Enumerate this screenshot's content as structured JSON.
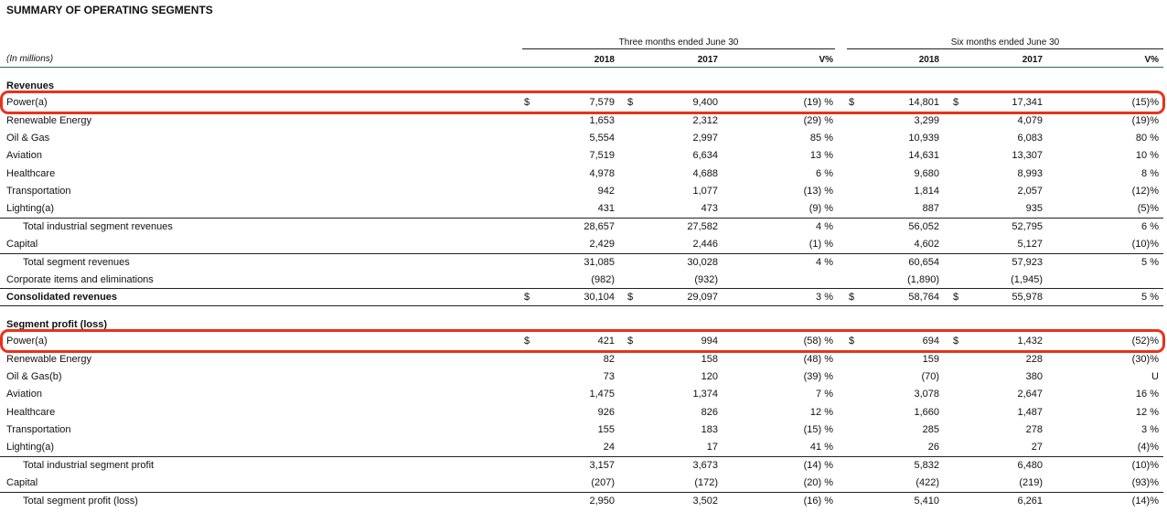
{
  "header": {
    "title": "SUMMARY OF OPERATING SEGMENTS",
    "units": "(In millions)",
    "periods": [
      "Three months ended June 30",
      "Six months ended June 30"
    ],
    "columns": [
      "2018",
      "2017",
      "V%",
      "2018",
      "2017",
      "V%"
    ]
  },
  "sections": [
    {
      "title": "Revenues",
      "rows": [
        {
          "label": "Power(a)",
          "currency": "$",
          "highlight": true,
          "values": [
            "7,579",
            "9,400",
            "(19) %",
            "14,801",
            "17,341",
            "(15)%"
          ]
        },
        {
          "label": "Renewable Energy",
          "values": [
            "1,653",
            "2,312",
            "(29) %",
            "3,299",
            "4,079",
            "(19)%"
          ]
        },
        {
          "label": "Oil & Gas",
          "values": [
            "5,554",
            "2,997",
            "85 %",
            "10,939",
            "6,083",
            "80 %"
          ]
        },
        {
          "label": "Aviation",
          "values": [
            "7,519",
            "6,634",
            "13 %",
            "14,631",
            "13,307",
            "10 %"
          ]
        },
        {
          "label": "Healthcare",
          "values": [
            "4,978",
            "4,688",
            "6 %",
            "9,680",
            "8,993",
            "8 %"
          ]
        },
        {
          "label": "Transportation",
          "values": [
            "942",
            "1,077",
            "(13) %",
            "1,814",
            "2,057",
            "(12)%"
          ]
        },
        {
          "label": "Lighting(a)",
          "values": [
            "431",
            "473",
            "(9) %",
            "887",
            "935",
            "(5)%"
          ]
        },
        {
          "label": "Total industrial segment revenues",
          "style": "total",
          "values": [
            "28,657",
            "27,582",
            "4 %",
            "56,052",
            "52,795",
            "6 %"
          ]
        },
        {
          "label": "Capital",
          "values": [
            "2,429",
            "2,446",
            "(1) %",
            "4,602",
            "5,127",
            "(10)%"
          ]
        },
        {
          "label": "Total segment revenues",
          "style": "total",
          "values": [
            "31,085",
            "30,028",
            "4 %",
            "60,654",
            "57,923",
            "5 %"
          ]
        },
        {
          "label": "Corporate items and eliminations",
          "values": [
            "(982)",
            "(932)",
            null,
            "(1,890)",
            "(1,945)",
            null
          ]
        },
        {
          "label": "Consolidated revenues",
          "style": "bold",
          "currency": "$",
          "values": [
            "30,104",
            "29,097",
            "3 %",
            "58,764",
            "55,978",
            "5 %"
          ]
        }
      ]
    },
    {
      "title": "Segment profit (loss)",
      "rows": [
        {
          "label": "Power(a)",
          "currency": "$",
          "highlight": true,
          "values": [
            "421",
            "994",
            "(58) %",
            "694",
            "1,432",
            "(52)%"
          ]
        },
        {
          "label": "Renewable Energy",
          "values": [
            "82",
            "158",
            "(48) %",
            "159",
            "228",
            "(30)%"
          ]
        },
        {
          "label": "Oil & Gas(b)",
          "values": [
            "73",
            "120",
            "(39) %",
            "(70)",
            "380",
            "U"
          ]
        },
        {
          "label": "Aviation",
          "values": [
            "1,475",
            "1,374",
            "7 %",
            "3,078",
            "2,647",
            "16 %"
          ]
        },
        {
          "label": "Healthcare",
          "values": [
            "926",
            "826",
            "12 %",
            "1,660",
            "1,487",
            "12 %"
          ]
        },
        {
          "label": "Transportation",
          "values": [
            "155",
            "183",
            "(15) %",
            "285",
            "278",
            "3 %"
          ]
        },
        {
          "label": "Lighting(a)",
          "values": [
            "24",
            "17",
            "41 %",
            "26",
            "27",
            "(4)%"
          ]
        },
        {
          "label": "Total industrial segment profit",
          "style": "total",
          "values": [
            "3,157",
            "3,673",
            "(14) %",
            "5,832",
            "6,480",
            "(10)%"
          ]
        },
        {
          "label": "Capital",
          "values": [
            "(207)",
            "(172)",
            "(20) %",
            "(422)",
            "(219)",
            "(93)%"
          ]
        },
        {
          "label": "Total segment profit (loss)",
          "style": "total",
          "values": [
            "2,950",
            "3,502",
            "(16) %",
            "5,410",
            "6,261",
            "(14)%"
          ]
        }
      ]
    }
  ]
}
